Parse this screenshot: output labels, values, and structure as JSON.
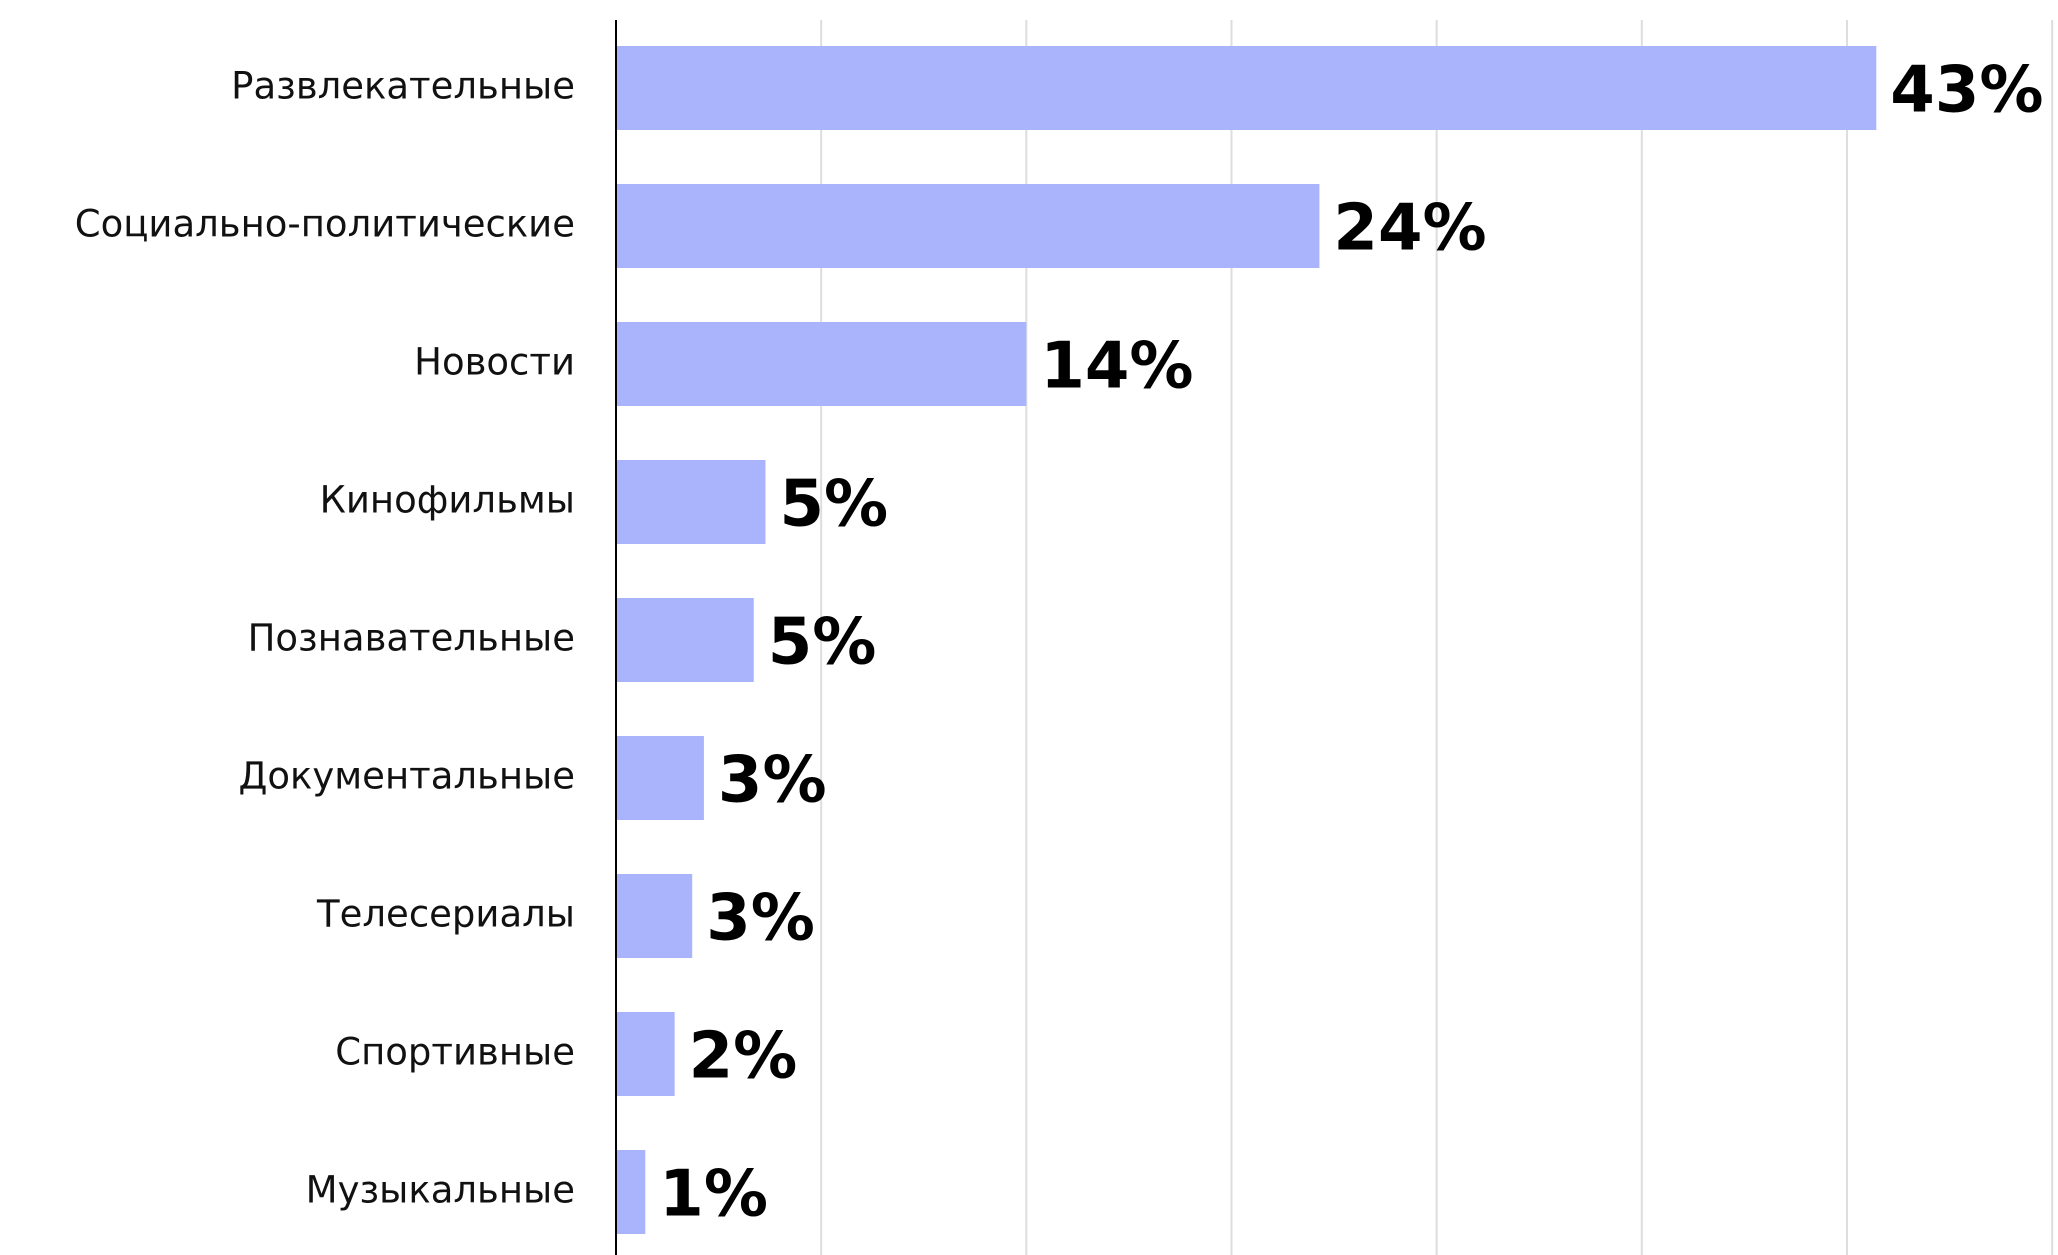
{
  "chart_data": {
    "type": "barh",
    "categories": [
      "Развлекательные",
      "Социально-политические",
      "Новости",
      "Кинофильмы",
      "Познавательные",
      "Документальные",
      "Телесериалы",
      "Спортивные",
      "Музыкальные"
    ],
    "values": [
      43,
      24,
      14,
      5.1,
      4.7,
      3,
      2.6,
      2,
      1
    ],
    "value_labels": [
      "43%",
      "24%",
      "14%",
      "5%",
      "5%",
      "3%",
      "3%",
      "2%",
      "1%"
    ],
    "color": "#aab4fd",
    "xlim": [
      0,
      49.2
    ],
    "xticks": [
      0,
      7,
      14,
      21,
      28,
      35,
      42,
      49
    ],
    "grid": true
  }
}
